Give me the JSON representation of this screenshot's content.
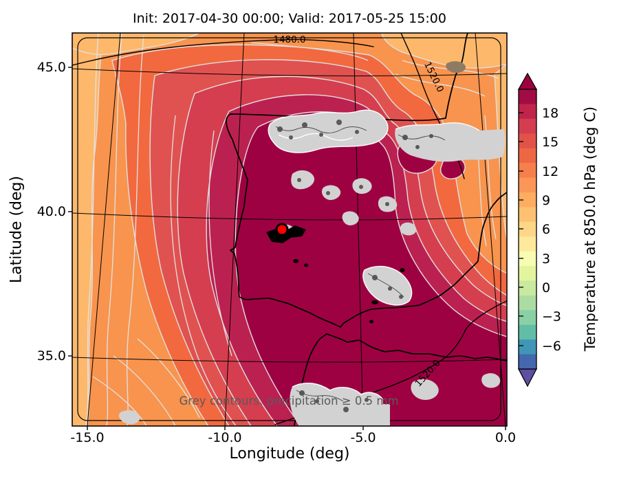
{
  "title": "Init: 2017-04-30 00:00; Valid: 2017-05-25 15:00",
  "xaxis": {
    "label": "Longitude (deg)",
    "ticks": [
      "-15.0",
      "-10.0",
      "-5.0",
      "0.0"
    ]
  },
  "yaxis": {
    "label": "Latitude (deg)",
    "ticks": [
      "45.0",
      "40.0",
      "35.0"
    ]
  },
  "colorbar": {
    "label": "Temperature at 850.0 hPa (deg C)",
    "ticks": [
      "18",
      "15",
      "12",
      "9",
      "6",
      "3",
      "0",
      "−3",
      "−6"
    ],
    "over_color": "#9e0142",
    "under_color": "#5e4fa2",
    "segment_colors": [
      "#a30b44",
      "#c02449",
      "#d43d4f",
      "#e25249",
      "#ee6745",
      "#f67f4b",
      "#fb9656",
      "#fdac60",
      "#fdc171",
      "#fed687",
      "#fee89c",
      "#f7fcb3",
      "#e3f49e",
      "#c8e99e",
      "#abdca3",
      "#8ad0a5",
      "#62bda7",
      "#3f96b7",
      "#4467ad"
    ]
  },
  "map": {
    "annotation": "Grey contours: precipitation ≥ 0.5 mm",
    "contour_labels": [
      "1480.0",
      "1520.0",
      "1520.0"
    ],
    "colors": {
      "base": "#f8944e",
      "light_band": "#fdb86c",
      "band_c": "#f2693f",
      "band_d": "#e05250",
      "band_e": "#d53e4f",
      "band_f": "#bb2150",
      "band_g": "#9e0142",
      "precip_fill": "#d2d2d2",
      "precip_speckle": "#5a5a5a",
      "terrain_patch": "#8d7c63",
      "marker": "#ff0000"
    }
  },
  "chart_data": {
    "type": "heatmap",
    "title": "Init: 2017-04-30 00:00; Valid: 2017-05-25 15:00",
    "xlabel": "Longitude (deg)",
    "ylabel": "Latitude (deg)",
    "xticks": [
      -15.0,
      -10.0,
      -5.0,
      0.0
    ],
    "yticks": [
      45.0,
      40.0,
      35.0
    ],
    "xlim": [
      -15.5,
      0.1
    ],
    "ylim": [
      34.3,
      46.4
    ],
    "field": "Temperature at 850.0 hPa (filled contours, deg C)",
    "colormap": "Spectral_r",
    "colorbar_ticks": [
      18,
      15,
      12,
      9,
      6,
      3,
      0,
      -3,
      -6
    ],
    "contour_level_step_degC": 1.5,
    "colorbar_extend": "both",
    "grid": true,
    "legend_position": "right colorbar",
    "overlays": [
      {
        "name": "temperature-contour-lines",
        "color": "light grey"
      },
      {
        "name": "geopotential-height-contours",
        "color": "black",
        "labeled_levels": [
          1480.0,
          1520.0
        ]
      },
      {
        "name": "precipitation-regions",
        "style": "grey fill with dark grey contours",
        "threshold": "≥ 0.5 mm"
      },
      {
        "name": "location-marker",
        "lon": -7.6,
        "lat": 39.4,
        "style": "red filled circle with black edge"
      }
    ],
    "approx_region_values_degC": {
      "atlantic-west-edge": 12,
      "atlantic-mid-band": 14,
      "central-north-iberia": 18.5,
      "southeast-iberia-alboran-sea": 20,
      "biscay-france-northeast-corner": 12.5
    }
  }
}
